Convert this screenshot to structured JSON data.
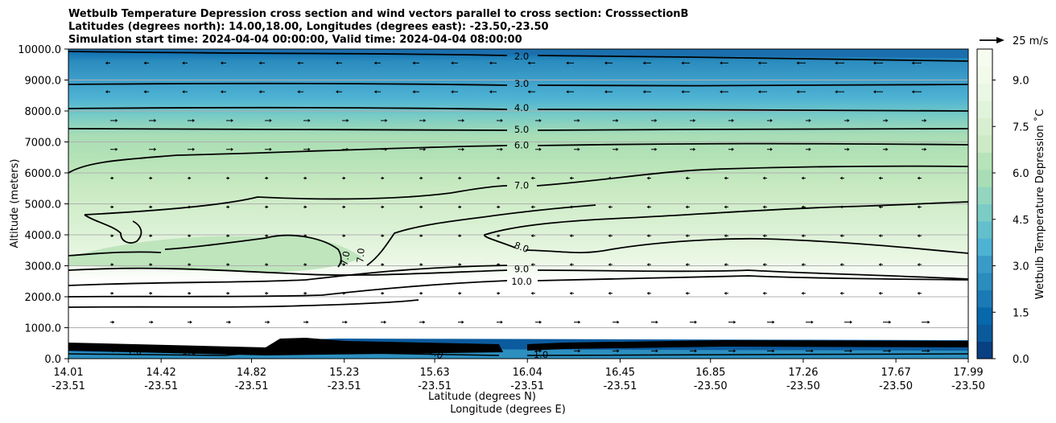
{
  "chart_data": {
    "type": "contour",
    "title_lines": [
      "Wetbulb Temperature Depression cross section and wind vectors parallel to cross section: CrosssectionB",
      "Latitudes (degrees north): 14.00,18.00, Longitudes (degrees east): -23.50,-23.50",
      "Simulation start time: 2024-04-04 00:00:00, Valid time: 2024-04-04 08:00:00"
    ],
    "ylabel": "Altitude (meters)",
    "xlabel_lat": "Latitude (degrees N)",
    "xlabel_lon": "Longitude (degrees E)",
    "ylim": [
      0,
      10000
    ],
    "y_ticks": [
      "0.0",
      "1000.0",
      "2000.0",
      "3000.0",
      "4000.0",
      "5000.0",
      "6000.0",
      "7000.0",
      "8000.0",
      "9000.0",
      "10000.0"
    ],
    "x_ticks": [
      {
        "lat": "14.01",
        "lon": "-23.51"
      },
      {
        "lat": "14.42",
        "lon": "-23.51"
      },
      {
        "lat": "14.82",
        "lon": "-23.51"
      },
      {
        "lat": "15.23",
        "lon": "-23.51"
      },
      {
        "lat": "15.63",
        "lon": "-23.51"
      },
      {
        "lat": "16.04",
        "lon": "-23.51"
      },
      {
        "lat": "16.45",
        "lon": "-23.51"
      },
      {
        "lat": "16.85",
        "lon": "-23.50"
      },
      {
        "lat": "17.26",
        "lon": "-23.50"
      },
      {
        "lat": "17.67",
        "lon": "-23.50"
      },
      {
        "lat": "17.99",
        "lon": "-23.50"
      }
    ],
    "contour_levels": [
      {
        "value": 2.0,
        "label": "2.0",
        "altitude": 9760
      },
      {
        "value": 3.0,
        "label": "3.0",
        "altitude": 8880
      },
      {
        "value": 4.0,
        "label": "4.0",
        "altitude": 8100
      },
      {
        "value": 5.0,
        "label": "5.0",
        "altitude": 7400
      },
      {
        "value": 6.0,
        "label": "6.0",
        "altitude": 6900
      },
      {
        "value": 7.0,
        "label": "7.0",
        "altitude": 5600
      },
      {
        "value": 8.0,
        "label": "8.0",
        "altitude": 3600
      },
      {
        "value": 9.0,
        "label": "9.0",
        "altitude": 2900
      },
      {
        "value": 10.0,
        "label": "10.0",
        "altitude": 2500
      }
    ],
    "extra_labels": [
      "7.0",
      "7.0",
      "1.0",
      "1.0",
      "1.0",
      "1.0"
    ],
    "colorbar": {
      "label": "Wetbulb Temperature Depression ˚C",
      "min": 0,
      "max": 10,
      "ticks": [
        "0.0",
        "1.5",
        "3.0",
        "4.5",
        "6.0",
        "7.5",
        "9.0"
      ],
      "colors": [
        "#084081",
        "#0a5a9c",
        "#0868ac",
        "#1b7ab5",
        "#2b8cbe",
        "#3b9bc8",
        "#4eb3d3",
        "#63bfcb",
        "#7bccc4",
        "#93d5bf",
        "#a8ddb5",
        "#b6e3b7",
        "#ccebc5",
        "#d7efd0",
        "#e0f3db",
        "#eaf7e4",
        "#f2fae9",
        "#f7fcf0"
      ]
    },
    "wind_key": {
      "label": "25 m/s",
      "speed": 25
    }
  }
}
